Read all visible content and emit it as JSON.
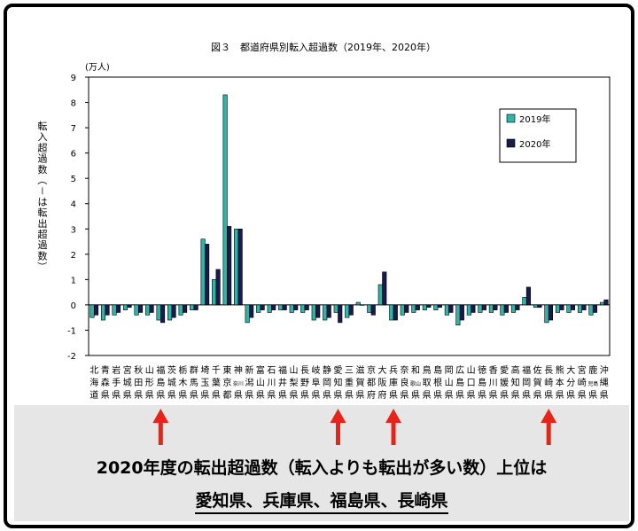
{
  "chart_data": {
    "type": "bar",
    "title": "図３　都道府県別転入超過数（2019年、2020年）",
    "unit": "(万人)",
    "ylabel": "転入超過数（－は転出超過数）",
    "ylim": [
      -2,
      9
    ],
    "yticks": [
      "-2",
      "-1",
      "0",
      "1",
      "2",
      "3",
      "4",
      "5",
      "6",
      "7",
      "8",
      "9"
    ],
    "legend": "top-right",
    "categories": [
      "北海道",
      "青森県",
      "岩手県",
      "宮城県",
      "秋田県",
      "山形県",
      "福島県",
      "茨城県",
      "栃木県",
      "群馬県",
      "埼玉県",
      "千葉県",
      "東京都",
      "神奈川県",
      "新潟県",
      "富山県",
      "石川県",
      "福井県",
      "山梨県",
      "長野県",
      "岐阜県",
      "静岡県",
      "愛知県",
      "三重県",
      "滋賀県",
      "京都府",
      "大阪府",
      "兵庫県",
      "奈良県",
      "和歌山県",
      "鳥取県",
      "島根県",
      "岡山県",
      "広島県",
      "山口県",
      "徳島県",
      "香川県",
      "愛媛県",
      "高知県",
      "福岡県",
      "佐賀県",
      "長崎県",
      "熊本県",
      "大分県",
      "宮崎県",
      "鹿児島県",
      "沖縄県"
    ],
    "series": [
      {
        "name": "2019年",
        "color": "#2fb5a8",
        "values": [
          -0.5,
          -0.6,
          -0.4,
          -0.2,
          -0.4,
          -0.4,
          -0.6,
          -0.6,
          -0.4,
          -0.2,
          2.6,
          1.0,
          8.3,
          3.0,
          -0.7,
          -0.3,
          -0.3,
          -0.2,
          -0.3,
          -0.3,
          -0.6,
          -0.6,
          -0.3,
          -0.5,
          0.1,
          -0.3,
          0.8,
          -0.6,
          -0.4,
          -0.3,
          -0.2,
          -0.2,
          -0.4,
          -0.8,
          -0.4,
          -0.3,
          -0.3,
          -0.4,
          -0.3,
          0.3,
          -0.1,
          -0.7,
          -0.3,
          -0.3,
          -0.3,
          -0.4,
          0.1
        ]
      },
      {
        "name": "2020年",
        "color": "#1a1a4e",
        "values": [
          -0.4,
          -0.4,
          -0.3,
          -0.1,
          -0.3,
          -0.3,
          -0.7,
          -0.5,
          -0.3,
          -0.2,
          2.4,
          1.4,
          3.1,
          3.0,
          -0.5,
          -0.2,
          -0.2,
          -0.2,
          -0.2,
          -0.2,
          -0.5,
          -0.5,
          -0.7,
          -0.4,
          0.0,
          -0.4,
          1.3,
          -0.6,
          -0.3,
          -0.2,
          -0.1,
          -0.1,
          -0.3,
          -0.6,
          -0.3,
          -0.2,
          -0.2,
          -0.3,
          -0.2,
          0.7,
          -0.1,
          -0.6,
          -0.2,
          -0.2,
          -0.2,
          -0.3,
          0.2
        ]
      }
    ]
  },
  "annotation": {
    "line1": "2020年度の転出超過数（転入よりも転出が多い数）上位は",
    "line2": "愛知県、兵庫県、福島県、長崎県",
    "arrow_color": "#e8241a",
    "highlighted": [
      "福島県",
      "愛知県",
      "兵庫県",
      "長崎県"
    ]
  }
}
